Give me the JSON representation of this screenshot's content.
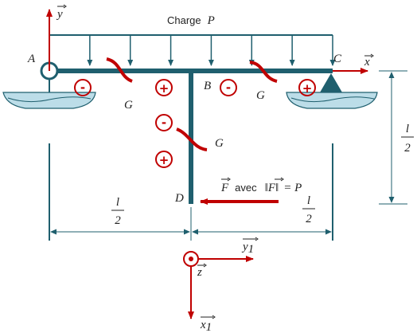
{
  "load": {
    "caption": "Charge",
    "symbol": "P",
    "arrow_count": 7
  },
  "points": {
    "A": "A",
    "B": "B",
    "C": "C",
    "D": "D"
  },
  "axes": {
    "y": "y",
    "x": "x",
    "y1": "y",
    "y1_sub": "1",
    "x1": "x",
    "x1_sub": "1",
    "z": "z"
  },
  "sections": {
    "g1": "G",
    "g2": "G",
    "g3": "G"
  },
  "signs": {
    "minus": "-",
    "plus": "+"
  },
  "force": {
    "vec": "F",
    "mid": "avec",
    "eq": "= P"
  },
  "dims": {
    "num": "l",
    "den": "2"
  },
  "colors": {
    "beam": "#1f5f6e",
    "accent": "#c00000",
    "ground": "#bcdde8",
    "dim": "#1f5f6e"
  }
}
